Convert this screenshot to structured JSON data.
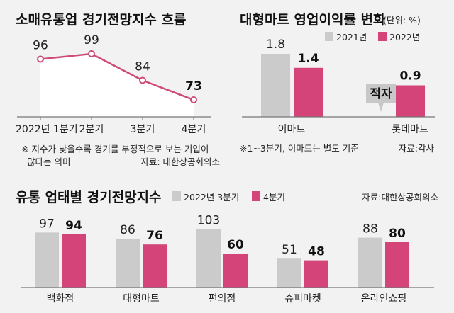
{
  "colors": {
    "gray": "#cbcbcb",
    "pink": "#d44478",
    "line": "#cf4a79",
    "axis": "#777777"
  },
  "chart_data": [
    {
      "type": "line",
      "title": "소매유통업 경기전망지수 흐름",
      "categories": [
        "2022년 1분기",
        "2분기",
        "3분기",
        "4분기"
      ],
      "values": [
        96,
        99,
        84,
        73
      ],
      "value_labels": [
        "96",
        "99",
        "84",
        "73"
      ],
      "ylim": [
        40,
        110
      ],
      "notes": [
        "※ 지수가 낮을수록 경기를 부정적으로 보는 기업이",
        "많다는 의미"
      ],
      "source": "자료: 대한상공회의소"
    },
    {
      "type": "bar",
      "title": "대형마트 영업이익률 변화",
      "unit": "(단위: %)",
      "categories": [
        "이마트",
        "롯데마트"
      ],
      "series": [
        {
          "name": "2021년",
          "values": [
            1.8,
            null
          ],
          "labels": [
            "1.8",
            "적자"
          ]
        },
        {
          "name": "2022년",
          "values": [
            1.4,
            0.9
          ],
          "labels": [
            "1.4",
            "0.9"
          ]
        }
      ],
      "ylim": [
        0,
        2
      ],
      "note": "※1~3분기, 이마트는 별도 기준",
      "source": "자료:각사"
    },
    {
      "type": "bar",
      "title": "유통 업태별 경기전망지수",
      "categories": [
        "백화점",
        "대형마트",
        "편의점",
        "슈퍼마켓",
        "온라인쇼핑"
      ],
      "series": [
        {
          "name": "2022년 3분기",
          "values": [
            97,
            86,
            103,
            51,
            88
          ]
        },
        {
          "name": "4분기",
          "values": [
            94,
            76,
            60,
            48,
            80
          ]
        }
      ],
      "ylim": [
        0,
        110
      ],
      "source": "자료:대한상공회의소"
    }
  ]
}
